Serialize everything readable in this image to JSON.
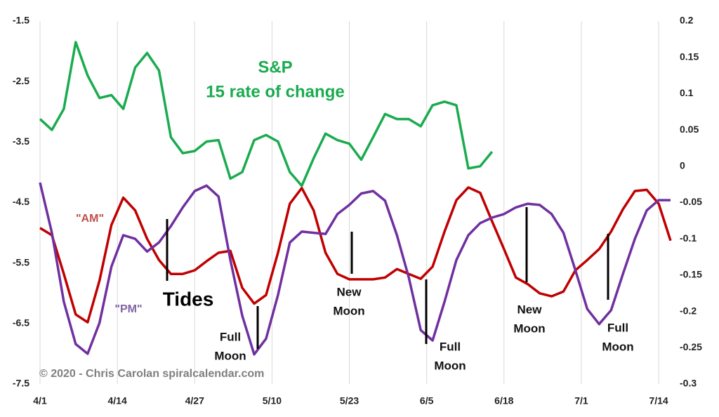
{
  "chart_data": {
    "type": "line",
    "title": "S&P",
    "subtitle": "15 rate of change",
    "x": [
      0,
      2,
      4,
      6,
      8,
      10,
      12,
      14,
      16,
      18,
      20,
      22,
      24,
      26,
      28,
      30,
      32,
      34,
      36,
      38,
      40,
      42,
      44,
      46,
      48,
      50,
      52,
      54,
      56,
      58,
      60,
      62,
      64,
      66,
      68,
      70,
      72,
      74,
      76,
      78,
      80,
      82,
      84,
      86,
      88,
      90,
      92,
      94,
      96,
      98,
      100,
      102,
      104,
      106
    ],
    "xlim": [
      0,
      106
    ],
    "xticks": [
      {
        "value": 0,
        "label": "4/1"
      },
      {
        "value": 13,
        "label": "4/14"
      },
      {
        "value": 26,
        "label": "4/27"
      },
      {
        "value": 39,
        "label": "5/10"
      },
      {
        "value": 52,
        "label": "5/23"
      },
      {
        "value": 65,
        "label": "6/5"
      },
      {
        "value": 78,
        "label": "6/18"
      },
      {
        "value": 91,
        "label": "7/1"
      },
      {
        "value": 104,
        "label": "7/14"
      }
    ],
    "ylim": [
      -7.5,
      -1.5
    ],
    "yticks": [
      -1.5,
      -2.5,
      -3.5,
      -4.5,
      -5.5,
      -6.5,
      -7.5
    ],
    "y2lim": [
      -0.3,
      0.2
    ],
    "y2ticks": [
      0.2,
      0.15,
      0.1,
      0.05,
      0,
      -0.05,
      -0.1,
      -0.15,
      -0.2,
      -0.25,
      -0.3
    ],
    "grid": "x",
    "series": [
      {
        "name": "\"AM\"",
        "color": "#c00000",
        "values": [
          -4.92,
          -5.04,
          -5.68,
          -6.35,
          -6.48,
          -5.79,
          -4.87,
          -4.42,
          -4.63,
          -5.1,
          -5.45,
          -5.68,
          -5.68,
          -5.62,
          -5.47,
          -5.33,
          -5.3,
          -5.91,
          -6.17,
          -6.03,
          -5.33,
          -4.52,
          -4.26,
          -4.63,
          -5.33,
          -5.68,
          -5.77,
          -5.77,
          -5.77,
          -5.74,
          -5.6,
          -5.68,
          -5.76,
          -5.56,
          -4.98,
          -4.46,
          -4.25,
          -4.34,
          -4.81,
          -5.27,
          -5.74,
          -5.85,
          -6.0,
          -6.05,
          -5.97,
          -5.62,
          -5.45,
          -5.27,
          -4.98,
          -4.61,
          -4.31,
          -4.29,
          -4.52,
          -5.13
        ]
      },
      {
        "name": "\"PM\"",
        "color": "#7030a0",
        "values": [
          -4.17,
          -5.0,
          -6.14,
          -6.84,
          -7.0,
          -6.49,
          -5.56,
          -5.04,
          -5.1,
          -5.31,
          -5.16,
          -4.89,
          -4.58,
          -4.31,
          -4.22,
          -4.4,
          -5.45,
          -6.37,
          -7.01,
          -6.75,
          -6.03,
          -5.16,
          -4.98,
          -5.0,
          -5.02,
          -4.69,
          -4.54,
          -4.35,
          -4.31,
          -4.47,
          -5.04,
          -5.74,
          -6.61,
          -6.78,
          -6.14,
          -5.45,
          -5.04,
          -4.84,
          -4.75,
          -4.69,
          -4.58,
          -4.52,
          -4.54,
          -4.69,
          -5.0,
          -5.62,
          -6.26,
          -6.51,
          -6.28,
          -5.68,
          -5.1,
          -4.63,
          -4.46,
          -4.46
        ]
      },
      {
        "name": "S&P",
        "color": "#1aab4f",
        "axis": "y2",
        "values": [
          0.065,
          0.05,
          0.079,
          0.171,
          0.125,
          0.094,
          0.098,
          0.079,
          0.136,
          0.156,
          0.132,
          0.04,
          0.018,
          0.021,
          0.034,
          0.036,
          -0.017,
          -0.008,
          0.036,
          0.043,
          0.034,
          -0.008,
          -0.027,
          0.011,
          0.045,
          0.036,
          0.031,
          0.009,
          0.04,
          0.072,
          0.065,
          0.065,
          0.055,
          0.084,
          0.089,
          0.084,
          -0.003,
          0.0,
          0.02,
          null,
          null,
          null,
          null,
          null,
          null,
          null,
          null,
          null,
          null,
          null,
          null,
          null,
          null,
          null
        ]
      }
    ],
    "annotations": {
      "tides": "Tides",
      "moons": [
        [
          "Full",
          "Moon"
        ],
        [
          "New",
          "Moon"
        ],
        [
          "Full",
          "Moon"
        ],
        [
          "New",
          "Moon"
        ],
        [
          "Full",
          "Moon"
        ]
      ],
      "credit": "©  2020 - Chris Carolan  spiralcalendar.com"
    }
  }
}
